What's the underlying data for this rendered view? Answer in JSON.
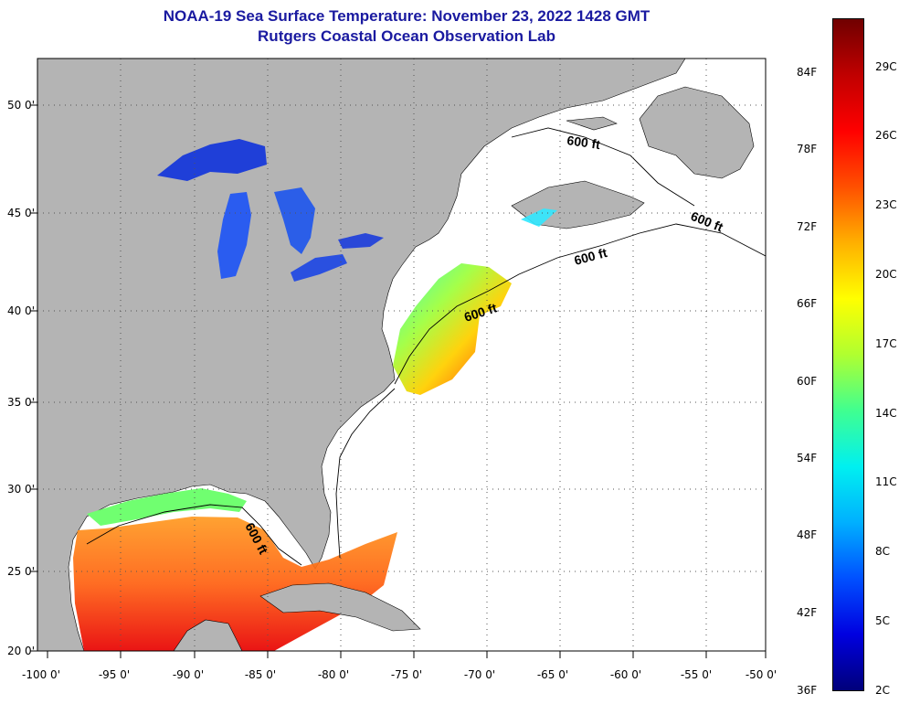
{
  "header": {
    "title_line1": "NOAA-19 Sea Surface Temperature:  November 23, 2022 1428 GMT",
    "title_line2": "Rutgers Coastal Ocean Observation Lab"
  },
  "axes": {
    "x_ticks": [
      "-100 0'",
      "-95 0'",
      "-90 0'",
      "-85 0'",
      "-80 0'",
      "-75 0'",
      "-70 0'",
      "-65 0'",
      "-60 0'",
      "-55 0'",
      "-50 0'"
    ],
    "y_ticks": [
      "50 0'",
      "45 0'",
      "40 0'",
      "35 0'",
      "30 0'",
      "25 0'",
      "20 0'"
    ],
    "lon_range": [
      -100,
      -50
    ],
    "lat_range": [
      20,
      52.5
    ],
    "grid": "dotted"
  },
  "contours": {
    "label": "600 ft",
    "labels": [
      "600 ft",
      "600 ft",
      "600 ft",
      "600 ft",
      "600 ft"
    ]
  },
  "colorbar": {
    "fahrenheit_labels": [
      "84F",
      "78F",
      "72F",
      "66F",
      "60F",
      "54F",
      "48F",
      "42F",
      "36F"
    ],
    "celsius_labels": [
      "29C",
      "26C",
      "23C",
      "20C",
      "17C",
      "14C",
      "11C",
      "8C",
      "5C",
      "2C"
    ],
    "range_c": [
      2,
      31
    ],
    "colors": [
      "#00007a",
      "#0000e0",
      "#0050ff",
      "#00b0ff",
      "#00f0f0",
      "#40ff90",
      "#b0ff30",
      "#ffff00",
      "#ffb000",
      "#ff5000",
      "#ff0000",
      "#c00000",
      "#700000"
    ]
  },
  "colors": {
    "land": "#b4b4b4",
    "ocean": "#ffffff",
    "lakes_water": "#1f3fd8",
    "title": "#1a1aa0"
  }
}
